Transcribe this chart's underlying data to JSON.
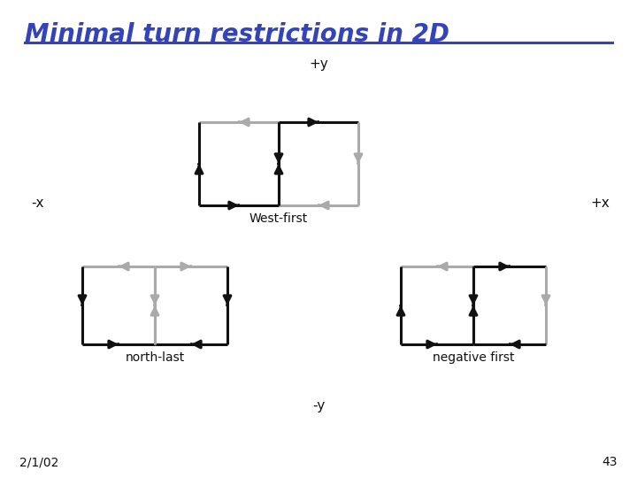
{
  "title": "Minimal turn restrictions in 2D",
  "title_color": "#3344bb",
  "title_fontsize": 20,
  "bg_color": "#ffffff",
  "line_color_black": "#111111",
  "line_color_gray": "#aaaaaa",
  "labels": {
    "py": "+y",
    "my": "-y",
    "px": "+x",
    "mx": "-x",
    "west_first": "West-first",
    "north_last": "north-last",
    "negative_first": "negative first",
    "date": "2/1/02",
    "page": "43"
  },
  "lw": 2.2,
  "mutation_scale": 14,
  "figw": 7.2,
  "figh": 5.4,
  "dpi": 100
}
